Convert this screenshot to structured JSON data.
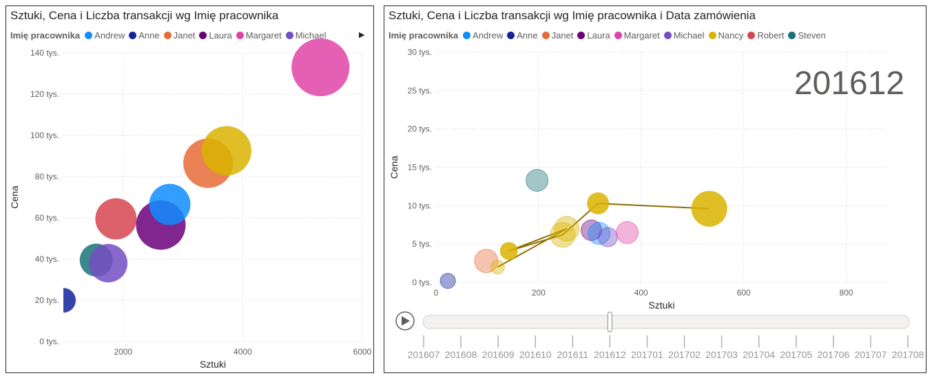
{
  "colors": {
    "Andrew": "#118DFF",
    "Anne": "#12239E",
    "Janet": "#E66C37",
    "Laura": "#6B007B",
    "Margaret": "#E044A7",
    "Michael": "#744EC2",
    "Nancy": "#D9B300",
    "Robert": "#D64550",
    "Steven": "#197278"
  },
  "left": {
    "title": "Sztuki, Cena i Liczba transakcji wg Imię pracownika",
    "legend_title": "Imię pracownika",
    "legend_items": [
      "Andrew",
      "Anne",
      "Janet",
      "Laura",
      "Margaret",
      "Michael"
    ],
    "legend_more_icon": "triangle-right"
  },
  "right": {
    "title": "Sztuki, Cena i Liczba transakcji wg Imię pracownika i Data zamówienia",
    "legend_title": "Imię pracownika",
    "legend_items": [
      "Andrew",
      "Anne",
      "Janet",
      "Laura",
      "Margaret",
      "Michael",
      "Nancy",
      "Robert",
      "Steven"
    ],
    "frame_label": "201612",
    "play_icon": "play",
    "play_ticks": [
      "201607",
      "201608",
      "201609",
      "201610",
      "201611",
      "201612",
      "201701",
      "201702",
      "201703",
      "201704",
      "201705",
      "201706",
      "201707",
      "201708"
    ]
  },
  "chart_data": [
    {
      "type": "scatter",
      "title": "Sztuki, Cena i Liczba transakcji wg Imię pracownika",
      "xlabel": "Sztuki",
      "ylabel": "Cena",
      "xlim": [
        1000,
        6000
      ],
      "ylim": [
        0,
        140000
      ],
      "x_ticks": [
        2000,
        4000,
        6000
      ],
      "x_tick_labels": [
        "2000",
        "4000",
        "6000"
      ],
      "y_ticks": [
        0,
        20000,
        40000,
        60000,
        80000,
        100000,
        120000,
        140000
      ],
      "y_tick_labels": [
        "0 tys.",
        "20 tys.",
        "40 tys.",
        "60 tys.",
        "80 tys.",
        "100 tys.",
        "120 tys.",
        "140 tys."
      ],
      "grid": true,
      "legend_placement": "top",
      "points": [
        {
          "name": "Anne",
          "x": 1000,
          "y": 20000,
          "size": 18
        },
        {
          "name": "Steven",
          "x": 1550,
          "y": 39500,
          "size": 24
        },
        {
          "name": "Michael",
          "x": 1750,
          "y": 38000,
          "size": 28
        },
        {
          "name": "Robert",
          "x": 1880,
          "y": 59500,
          "size": 30
        },
        {
          "name": "Laura",
          "x": 2630,
          "y": 56500,
          "size": 36
        },
        {
          "name": "Andrew",
          "x": 2780,
          "y": 66500,
          "size": 30
        },
        {
          "name": "Janet",
          "x": 3420,
          "y": 86500,
          "size": 36
        },
        {
          "name": "Nancy",
          "x": 3730,
          "y": 92500,
          "size": 36
        },
        {
          "name": "Margaret",
          "x": 5300,
          "y": 133000,
          "size": 42
        }
      ]
    },
    {
      "type": "scatter",
      "title": "Sztuki, Cena i Liczba transakcji wg Imię pracownika i Data zamówienia",
      "xlabel": "Sztuki",
      "ylabel": "Cena",
      "xlim": [
        0,
        880
      ],
      "ylim": [
        0,
        30000
      ],
      "x_ticks": [
        0,
        200,
        400,
        600,
        800
      ],
      "x_tick_labels": [
        "0",
        "200",
        "400",
        "600",
        "800"
      ],
      "y_ticks": [
        0,
        5000,
        10000,
        15000,
        20000,
        25000,
        30000
      ],
      "y_tick_labels": [
        "0 tys.",
        "5 tys.",
        "10 tys.",
        "15 tys.",
        "20 tys.",
        "25 tys.",
        "30 tys."
      ],
      "grid": true,
      "legend_placement": "top",
      "current_frame": "201612",
      "points": [
        {
          "name": "Anne",
          "x": 23,
          "y": 200,
          "size": 11,
          "faded": true
        },
        {
          "name": "Steven",
          "x": 197,
          "y": 13300,
          "size": 16,
          "faded": true
        },
        {
          "name": "Janet",
          "x": 98,
          "y": 2800,
          "size": 17,
          "faded": true
        },
        {
          "name": "Nancy",
          "x": 120,
          "y": 2000,
          "size": 10,
          "faded": true
        },
        {
          "name": "Nancy",
          "x": 142,
          "y": 4100,
          "size": 13,
          "faded": false
        },
        {
          "name": "Nancy",
          "x": 247,
          "y": 6200,
          "size": 18,
          "faded": true
        },
        {
          "name": "Nancy",
          "x": 255,
          "y": 7000,
          "size": 18,
          "faded": true
        },
        {
          "name": "Laura",
          "x": 303,
          "y": 6800,
          "size": 15,
          "faded": true
        },
        {
          "name": "Andrew",
          "x": 318,
          "y": 6400,
          "size": 16,
          "faded": true
        },
        {
          "name": "Michael",
          "x": 335,
          "y": 5900,
          "size": 14,
          "faded": true
        },
        {
          "name": "Margaret",
          "x": 373,
          "y": 6500,
          "size": 16,
          "faded": true
        },
        {
          "name": "Nancy",
          "x": 316,
          "y": 10300,
          "size": 16,
          "faded": false
        },
        {
          "name": "Nancy",
          "x": 533,
          "y": 9600,
          "size": 26,
          "faded": false
        }
      ],
      "trail": {
        "name": "Nancy",
        "points": [
          [
            120,
            2000
          ],
          [
            255,
            7000
          ],
          [
            142,
            4100
          ],
          [
            247,
            6200
          ],
          [
            316,
            10300
          ],
          [
            533,
            9600
          ]
        ]
      }
    }
  ]
}
